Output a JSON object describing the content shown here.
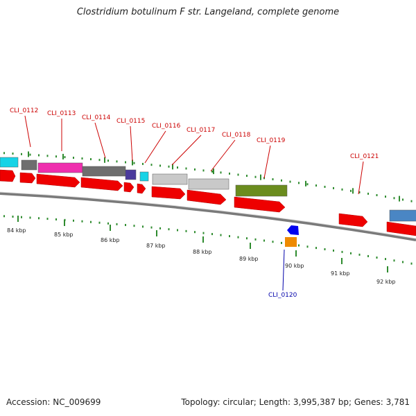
{
  "title": "Clostridium botulinum F str. Langeland, complete genome",
  "footer": {
    "accession": "Accession: NC_009699",
    "stats": "Topology: circular; Length: 3,995,387 bp; Genes: 3,781"
  },
  "colors": {
    "backbone": "#8c8c8c",
    "tick": "#2e8b2e",
    "label_forward": "#cc0000",
    "label_reverse": "#0000aa",
    "orf": "#ee0000"
  },
  "scale": {
    "ticks_kbp": [
      84,
      85,
      86,
      87,
      88,
      89,
      90,
      91,
      92
    ],
    "labels": [
      "84 kbp",
      "85 kbp",
      "86 kbp",
      "87 kbp",
      "88 kbp",
      "89 kbp",
      "90 kbp",
      "91 kbp",
      "92 kbp"
    ]
  },
  "gene_labels": [
    {
      "id": "CLI_0112",
      "strand": "forward"
    },
    {
      "id": "CLI_0113",
      "strand": "forward"
    },
    {
      "id": "CLI_0114",
      "strand": "forward"
    },
    {
      "id": "CLI_0115",
      "strand": "forward"
    },
    {
      "id": "CLI_0116",
      "strand": "forward"
    },
    {
      "id": "CLI_0117",
      "strand": "forward"
    },
    {
      "id": "CLI_0118",
      "strand": "forward"
    },
    {
      "id": "CLI_0119",
      "strand": "forward"
    },
    {
      "id": "CLI_0120",
      "strand": "reverse"
    },
    {
      "id": "CLI_0121",
      "strand": "forward"
    }
  ],
  "cog_features": [
    {
      "color": "#17d3e6"
    },
    {
      "color": "#6e6e6e"
    },
    {
      "color": "#ef2fae"
    },
    {
      "color": "#6e6e6e"
    },
    {
      "color": "#4b3a9c"
    },
    {
      "color": "#17d3e6"
    },
    {
      "color": "#c9c9c9"
    },
    {
      "color": "#c9c9c9"
    },
    {
      "color": "#6b8c1e"
    },
    {
      "color": "#4a86c4"
    }
  ],
  "reverse_features": [
    {
      "color": "#0000ee"
    },
    {
      "color": "#ee8a00"
    }
  ]
}
